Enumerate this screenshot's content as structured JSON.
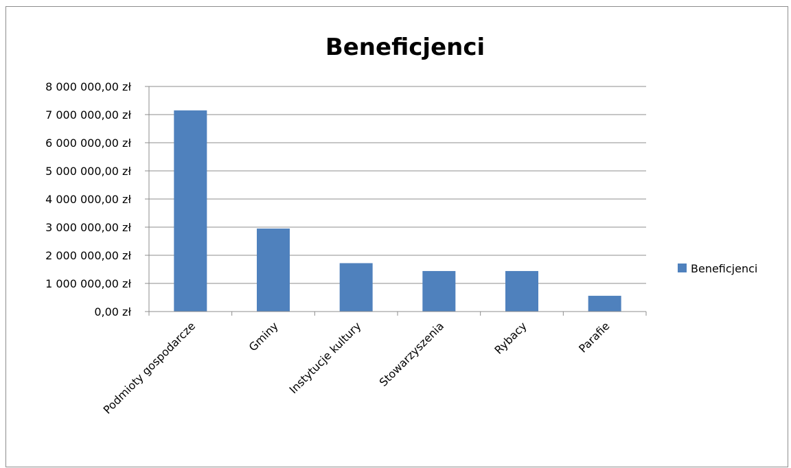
{
  "chart_data": {
    "type": "bar",
    "title": "Beneficjenci",
    "categories": [
      "Podmioty gospodarcze",
      "Gminy",
      "Instytucje kultury",
      "Stowarzyszenia",
      "Rybacy",
      "Parafie"
    ],
    "series": [
      {
        "name": "Beneficjenci",
        "values": [
          7150000,
          2950000,
          1720000,
          1440000,
          1440000,
          560000
        ],
        "color": "#4f81bd"
      }
    ],
    "ylim": [
      0,
      8000000
    ],
    "yticks": [
      0,
      1000000,
      2000000,
      3000000,
      4000000,
      5000000,
      6000000,
      7000000,
      8000000
    ],
    "ytick_labels": [
      "0,00 zł",
      "1 000 000,00 zł",
      "2 000 000,00 zł",
      "3 000 000,00 zł",
      "4 000 000,00 zł",
      "5 000 000,00 zł",
      "6 000 000,00 zł",
      "7 000 000,00 zł",
      "8 000 000,00 zł"
    ],
    "grid": true,
    "legend": "right"
  }
}
